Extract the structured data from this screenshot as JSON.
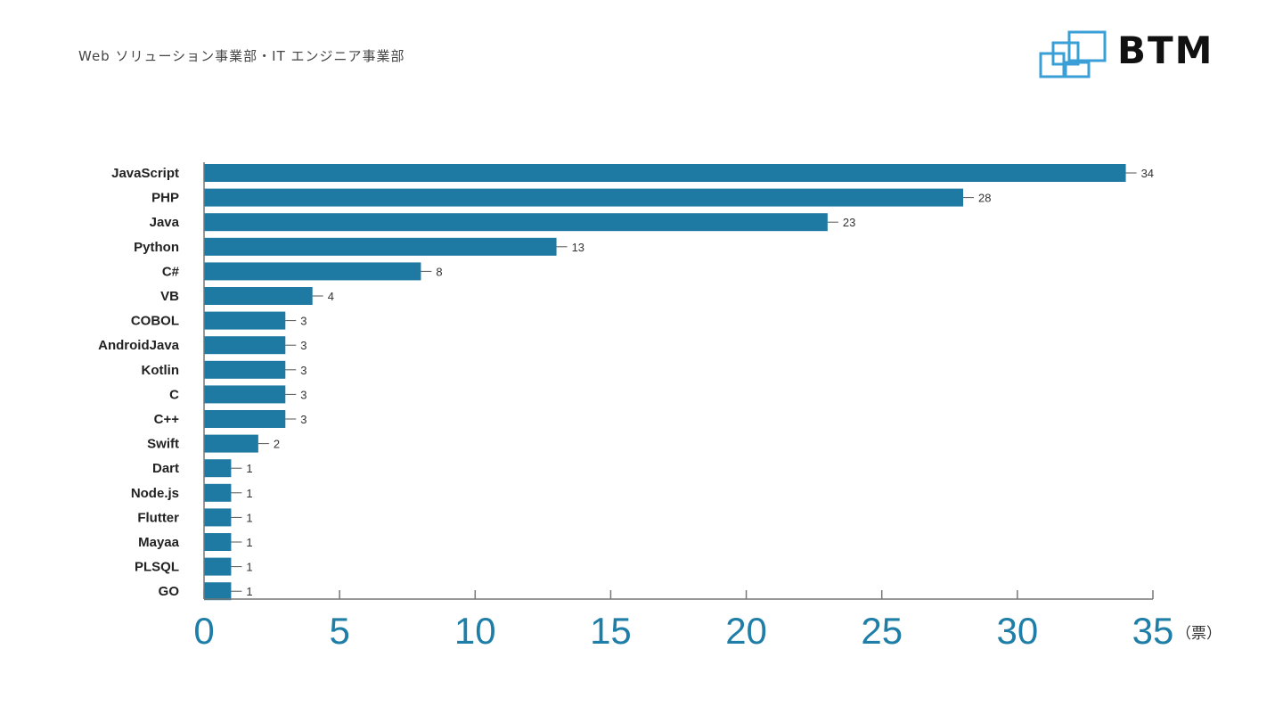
{
  "header": {
    "title": "Web ソリューション事業部・IT エンジニア事業部"
  },
  "logo": {
    "text": "BTM",
    "color": "#3a9fd6"
  },
  "chart_data": {
    "type": "bar",
    "orientation": "horizontal",
    "categories": [
      "JavaScript",
      "PHP",
      "Java",
      "Python",
      "C#",
      "VB",
      "COBOL",
      "AndroidJava",
      "Kotlin",
      "C",
      "C++",
      "Swift",
      "Dart",
      "Node.js",
      "Flutter",
      "Mayaa",
      "PLSQL",
      "GO"
    ],
    "values": [
      34,
      28,
      23,
      13,
      8,
      4,
      3,
      3,
      3,
      3,
      3,
      2,
      1,
      1,
      1,
      1,
      1,
      1
    ],
    "xlim": [
      0,
      35
    ],
    "xticks": [
      "0",
      "5",
      "10",
      "15",
      "20",
      "25",
      "30",
      "35"
    ],
    "x_unit": "（票）",
    "bar_color": "#1e7aa3",
    "tick_color": "#1e7ea8",
    "grid": false
  }
}
